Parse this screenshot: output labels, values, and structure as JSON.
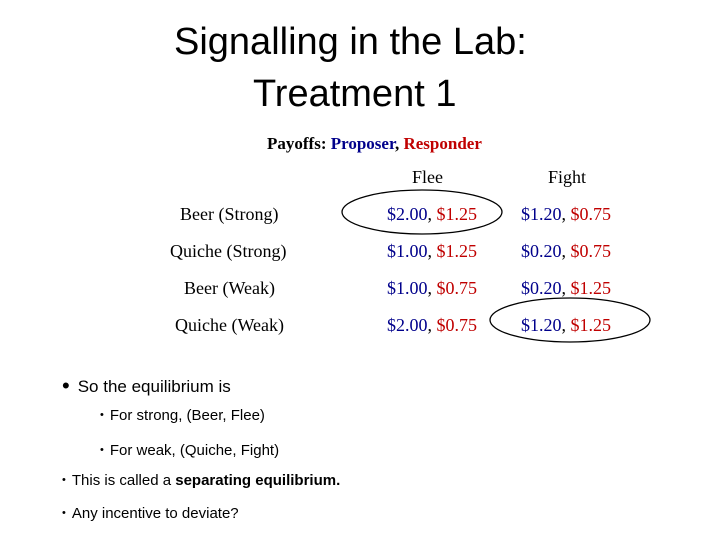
{
  "title": {
    "line1": "Signalling in the Lab:",
    "line2": "Treatment 1"
  },
  "payoffs_caption": {
    "label": "Payoffs: ",
    "proposer": "Proposer",
    "comma": ", ",
    "responder": "Responder"
  },
  "colors": {
    "proposer": "#00008B",
    "responder": "#C00000"
  },
  "table": {
    "columns": [
      "Flee",
      "Fight"
    ],
    "rows": [
      {
        "label": "Beer (Strong)",
        "flee": {
          "p": "$2.00",
          "r": "$1.25"
        },
        "fight": {
          "p": "$1.20",
          "r": "$0.75"
        }
      },
      {
        "label": "Quiche (Strong)",
        "flee": {
          "p": "$1.00",
          "r": "$1.25"
        },
        "fight": {
          "p": "$0.20",
          "r": "$0.75"
        }
      },
      {
        "label": "Beer (Weak)",
        "flee": {
          "p": "$1.00",
          "r": "$0.75"
        },
        "fight": {
          "p": "$0.20",
          "r": "$1.25"
        }
      },
      {
        "label": "Quiche (Weak)",
        "flee": {
          "p": "$2.00",
          "r": "$0.75"
        },
        "fight": {
          "p": "$1.20",
          "r": "$1.25"
        }
      }
    ]
  },
  "bullets": {
    "main": "So the equilibrium is",
    "sub1": "For strong, (Beer, Flee)",
    "sub2": "For weak, (Quiche, Fight)",
    "b3_prefix": "This is called a ",
    "b3_bold": "separating equilibrium.",
    "b4": "Any incentive to deviate?"
  }
}
